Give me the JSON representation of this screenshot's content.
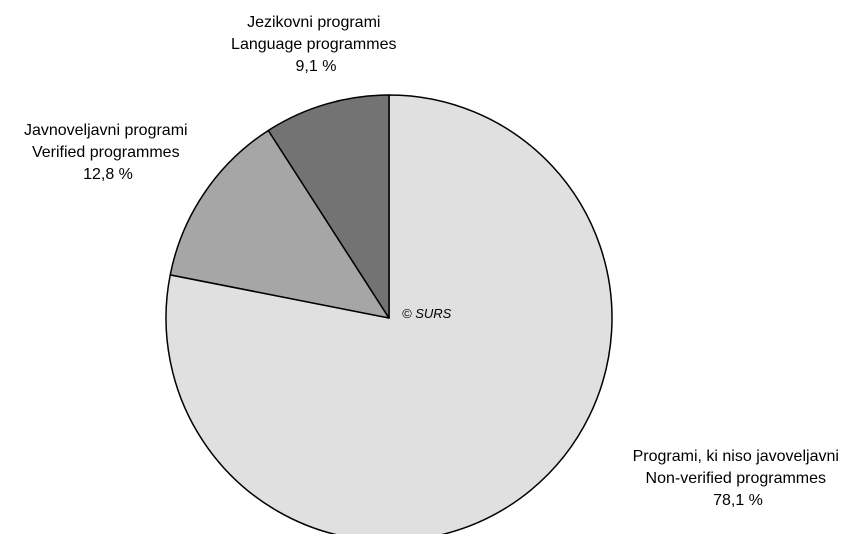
{
  "chart_data": {
    "type": "pie",
    "start_angle_deg": 0,
    "direction": "clockwise",
    "slices": [
      {
        "label_sl": "Programi, ki niso javoveljavni",
        "label_en": "Non-verified programmes",
        "value": 78.1,
        "value_text": "78,1 %",
        "color": "#e0e0e0"
      },
      {
        "label_sl": "Javnoveljavni programi",
        "label_en": "Verified programmes",
        "value": 12.8,
        "value_text": "12,8 %",
        "color": "#a6a6a6"
      },
      {
        "label_sl": "Jezikovni programi",
        "label_en": "Language programmes",
        "value": 9.1,
        "value_text": "9,1 %",
        "color": "#737373"
      }
    ],
    "watermark": "© SURS"
  }
}
